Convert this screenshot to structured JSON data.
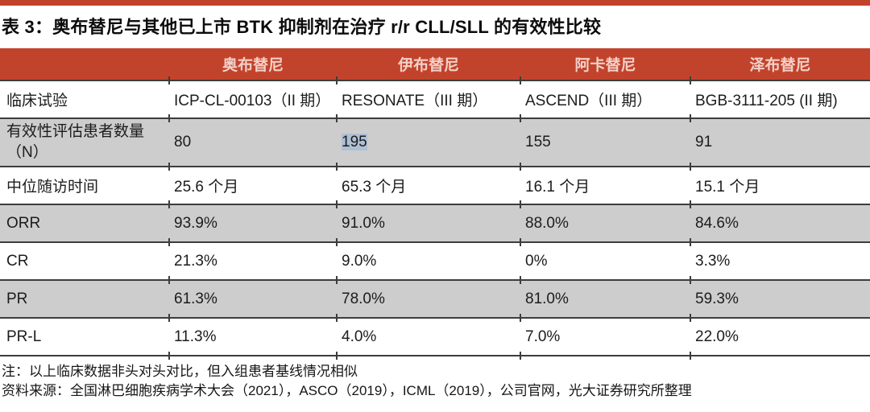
{
  "title": "表 3：奥布替尼与其他已上市 BTK 抑制剂在治疗 r/r CLL/SLL 的有效性比较",
  "table": {
    "columns": [
      "奥布替尼",
      "伊布替尼",
      "阿卡替尼",
      "泽布替尼"
    ],
    "rows": [
      {
        "label": "临床试验",
        "values": [
          "ICP-CL-00103（II 期）",
          "RESONATE（III 期）",
          "ASCEND（III 期）",
          "BGB-3111-205 (II 期)"
        ]
      },
      {
        "label": "有效性评估患者数量（N）",
        "values": [
          "80",
          "195",
          "155",
          "91"
        ],
        "highlighted_value": "195"
      },
      {
        "label": "中位随访时间",
        "values": [
          "25.6 个月",
          "65.3 个月",
          "16.1 个月",
          "15.1 个月"
        ]
      },
      {
        "label": "ORR",
        "values": [
          "93.9%",
          "91.0%",
          "88.0%",
          "84.6%"
        ]
      },
      {
        "label": "CR",
        "values": [
          "21.3%",
          "9.0%",
          "0%",
          "3.3%"
        ]
      },
      {
        "label": "PR",
        "values": [
          "61.3%",
          "78.0%",
          "81.0%",
          "59.3%"
        ]
      },
      {
        "label": "PR-L",
        "values": [
          "11.3%",
          "4.0%",
          "7.0%",
          "22.0%"
        ]
      }
    ]
  },
  "footnotes": {
    "note": "注：以上临床数据非头对头对比，但入组患者基线情况相似",
    "source": "资料来源：全国淋巴细胞疾病学术大会（2021），ASCO（2019），ICML（2019），公司官网，光大证券研究所整理"
  },
  "colors": {
    "accent": "#C2432B",
    "header_text": "#F3D0C8",
    "row_shade": "#CDCDCD",
    "selection_highlight": "#AFC0D5",
    "rule": "#3D3D3D"
  }
}
